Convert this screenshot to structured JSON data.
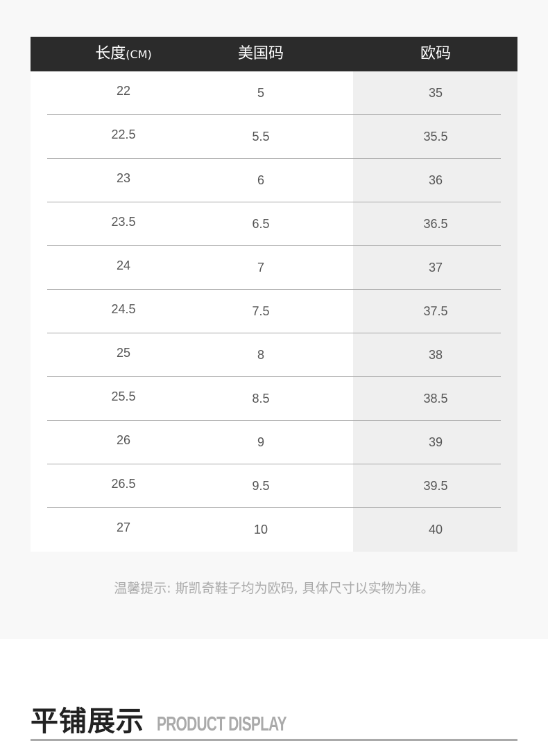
{
  "table": {
    "headers": {
      "length": "长度",
      "length_unit": "(CM)",
      "us": "美国码",
      "eu": "欧码"
    },
    "rows": [
      [
        "22",
        "5",
        "35"
      ],
      [
        "22.5",
        "5.5",
        "35.5"
      ],
      [
        "23",
        "6",
        "36"
      ],
      [
        "23.5",
        "6.5",
        "36.5"
      ],
      [
        "24",
        "7",
        "37"
      ],
      [
        "24.5",
        "7.5",
        "37.5"
      ],
      [
        "25",
        "8",
        "38"
      ],
      [
        "25.5",
        "8.5",
        "38.5"
      ],
      [
        "26",
        "9",
        "39"
      ],
      [
        "26.5",
        "9.5",
        "39.5"
      ],
      [
        "27",
        "10",
        "40"
      ]
    ]
  },
  "note": "温馨提示: 斯凯奇鞋子均为欧码, 具体尺寸以实物为准。",
  "section": {
    "title_cn": "平铺展示",
    "title_en": "PRODUCT DISPLAY"
  },
  "colors": {
    "header_bg": "#2b2b2b",
    "eu_column_bg": "#efefef",
    "page_bg": "#f8f8f8"
  }
}
